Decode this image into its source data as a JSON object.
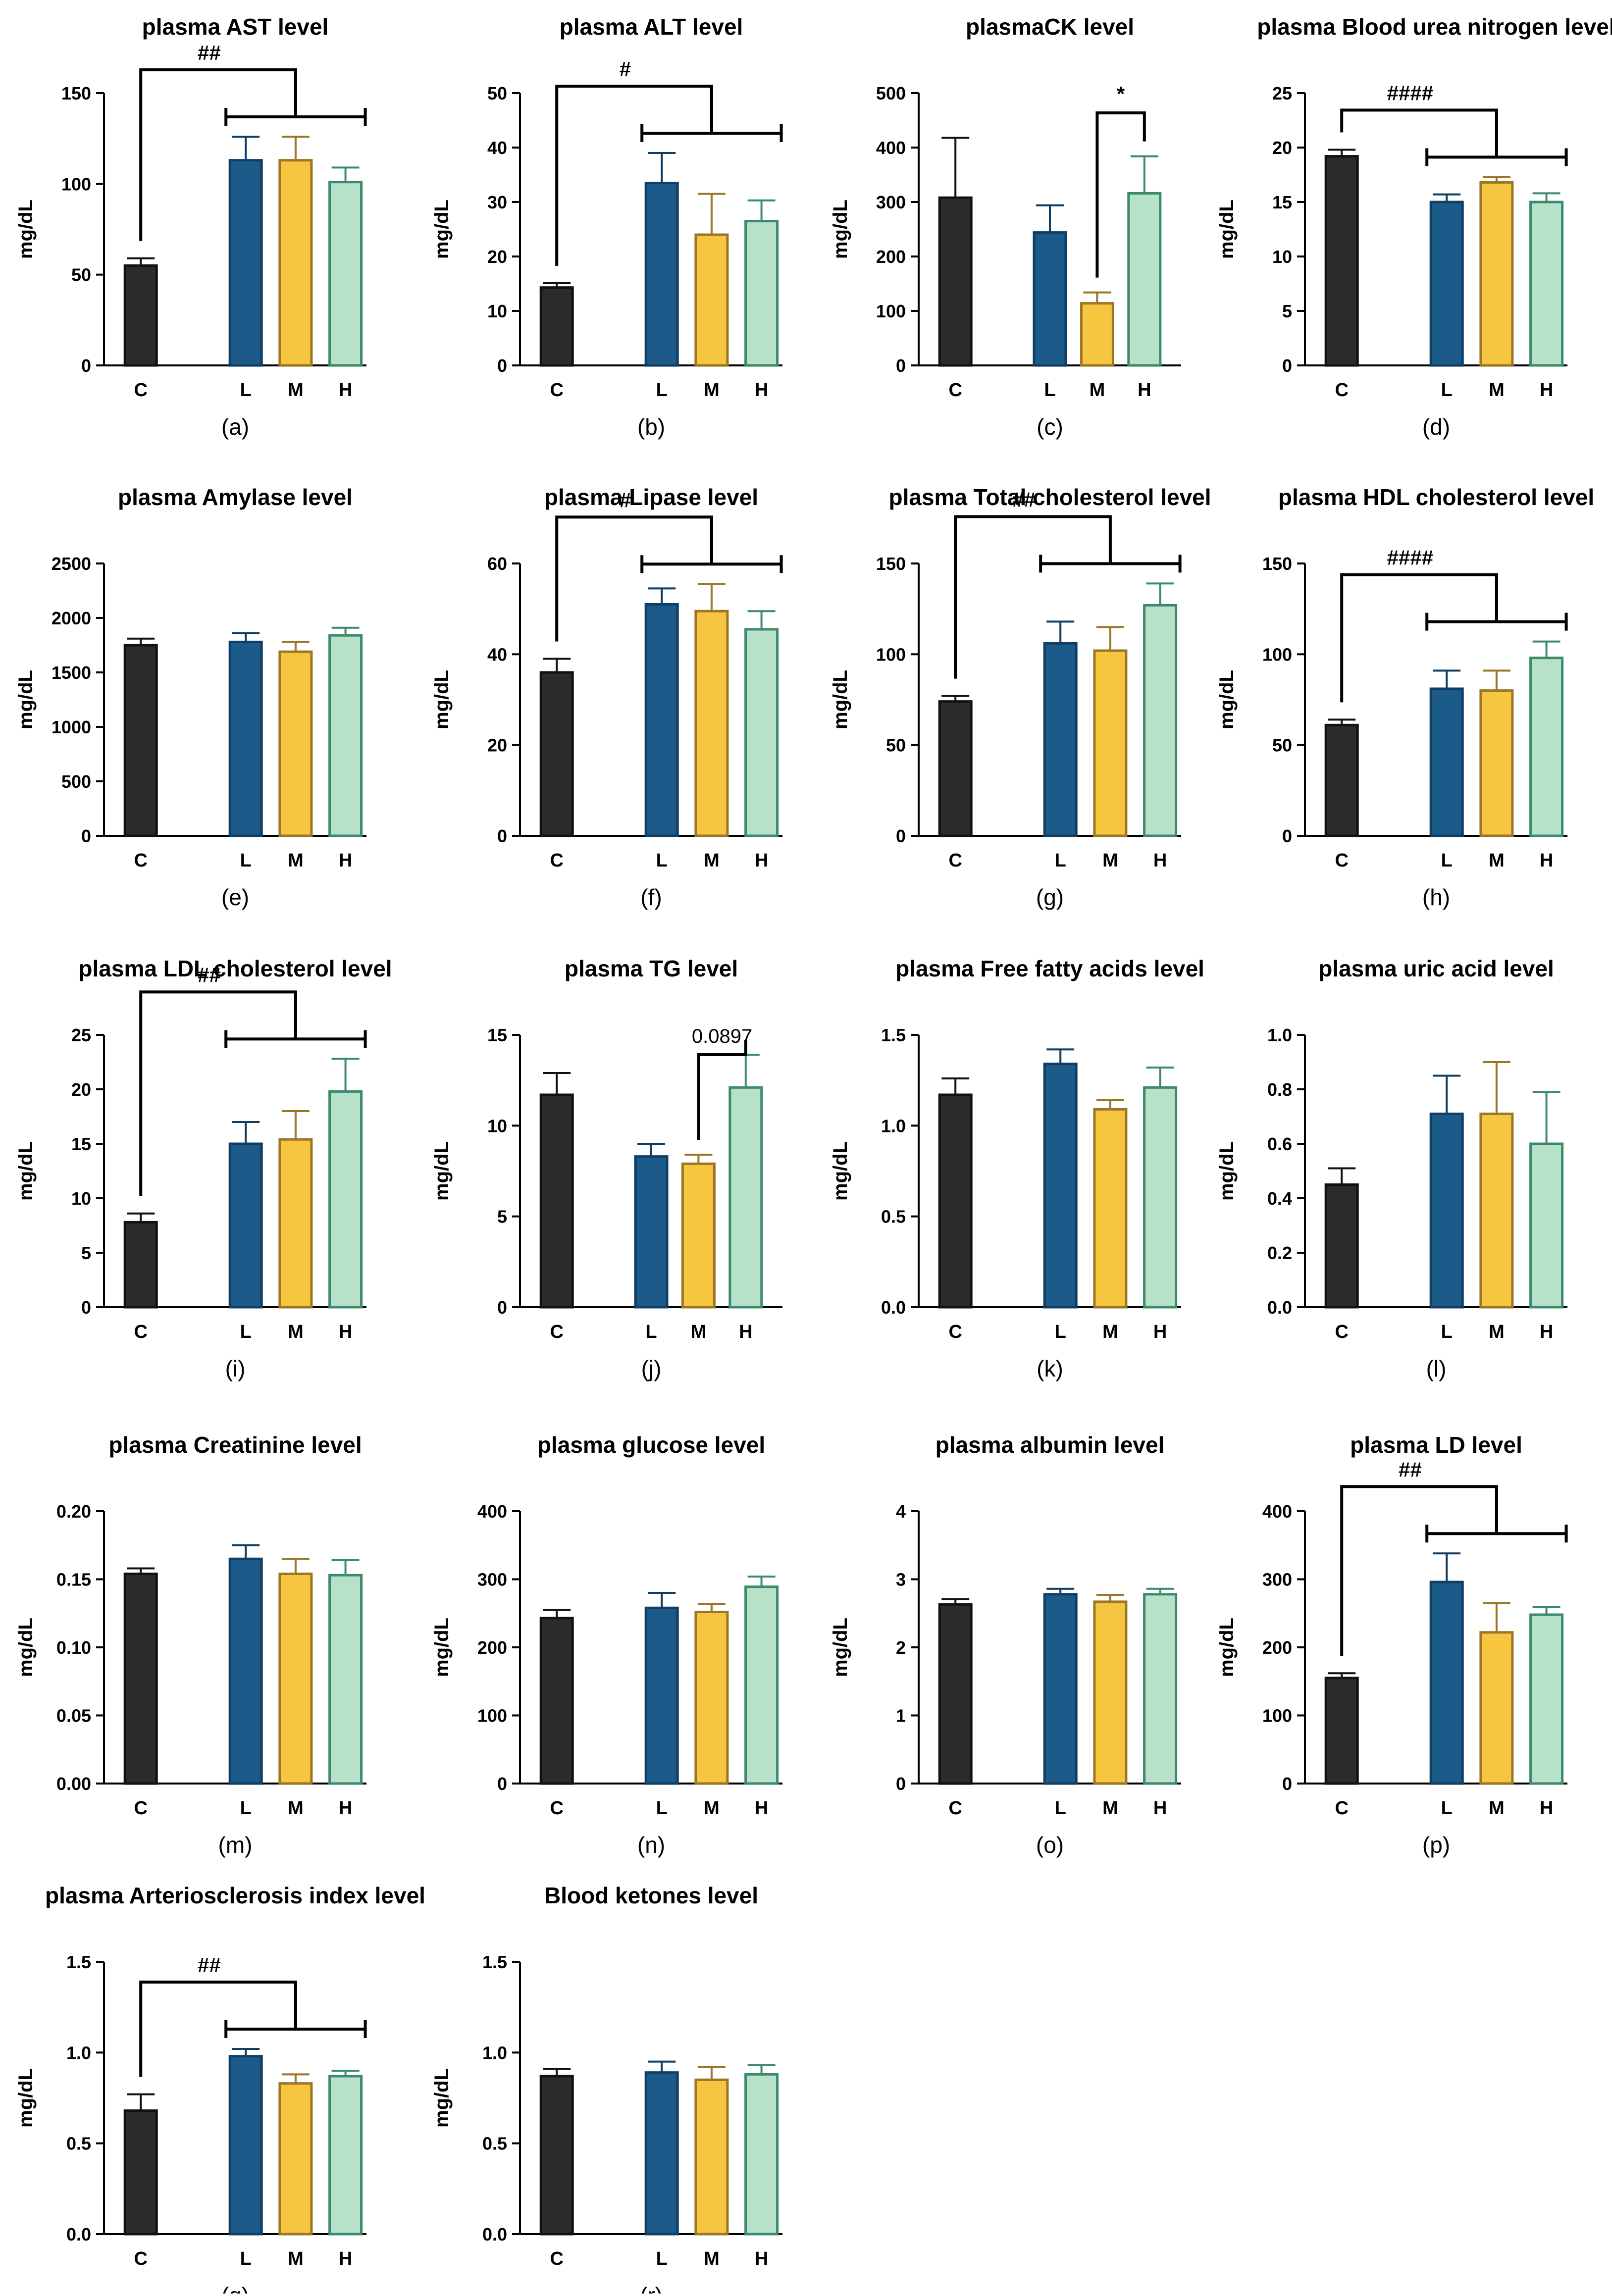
{
  "colors": {
    "C": "#2b2b2b",
    "L": "#1c5a8a",
    "M": "#f7c640",
    "H": "#b7e1c9",
    "edge_C": "#111111",
    "edge_L": "#0f3d63",
    "edge_M": "#9a7626",
    "edge_H": "#3c8a6e"
  },
  "chart_data": [
    {
      "type": "bar",
      "panel": "(a)",
      "title": "plasma AST level",
      "ylabel": "mg/dL",
      "categories": [
        "C",
        "L",
        "M",
        "H"
      ],
      "values": [
        55,
        113,
        113,
        101
      ],
      "errors": [
        4,
        13,
        13,
        8
      ],
      "ylim": [
        0,
        150
      ],
      "yticks": [
        "0",
        "50",
        "100",
        "150"
      ],
      "annotation": {
        "kind": "group",
        "label": "##"
      }
    },
    {
      "type": "bar",
      "panel": "(b)",
      "title": "plasma ALT level",
      "ylabel": "mg/dL",
      "categories": [
        "C",
        "L",
        "M",
        "H"
      ],
      "values": [
        14.3,
        33.5,
        24,
        26.5
      ],
      "errors": [
        0.8,
        5.5,
        7.5,
        3.8
      ],
      "ylim": [
        0,
        50
      ],
      "yticks": [
        "0",
        "10",
        "20",
        "30",
        "40",
        "50"
      ],
      "annotation": {
        "kind": "group",
        "label": "#"
      }
    },
    {
      "type": "bar",
      "panel": "(c)",
      "title": "plasmaCK level",
      "ylabel": "mg/dL",
      "categories": [
        "C",
        "L",
        "M",
        "H"
      ],
      "values": [
        308,
        244,
        114,
        316
      ],
      "errors": [
        110,
        50,
        20,
        68
      ],
      "ylim": [
        0,
        500
      ],
      "yticks": [
        "0",
        "100",
        "200",
        "300",
        "400",
        "500"
      ],
      "annotation": {
        "kind": "pair",
        "label": "*"
      }
    },
    {
      "type": "bar",
      "panel": "(d)",
      "title": "plasma Blood urea nitrogen level",
      "ylabel": "mg/dL",
      "categories": [
        "C",
        "L",
        "M",
        "H"
      ],
      "values": [
        19.2,
        15,
        16.8,
        15
      ],
      "errors": [
        0.6,
        0.7,
        0.5,
        0.8
      ],
      "ylim": [
        0,
        25
      ],
      "yticks": [
        "0",
        "5",
        "10",
        "15",
        "20",
        "25"
      ],
      "annotation": {
        "kind": "group",
        "label": "####"
      }
    },
    {
      "type": "bar",
      "panel": "(e)",
      "title": "plasma Amylase level",
      "ylabel": "mg/dL",
      "categories": [
        "C",
        "L",
        "M",
        "H"
      ],
      "values": [
        1750,
        1780,
        1690,
        1840
      ],
      "errors": [
        60,
        80,
        90,
        70
      ],
      "ylim": [
        0,
        2500
      ],
      "yticks": [
        "0",
        "500",
        "1000",
        "1500",
        "2000",
        "2500"
      ]
    },
    {
      "type": "bar",
      "panel": "(f)",
      "title": "plasma Lipase level",
      "ylabel": "mg/dL",
      "categories": [
        "C",
        "L",
        "M",
        "H"
      ],
      "values": [
        36,
        51,
        49.5,
        45.5
      ],
      "errors": [
        3,
        3.5,
        6,
        4
      ],
      "ylim": [
        0,
        60
      ],
      "yticks": [
        "0",
        "20",
        "40",
        "60"
      ],
      "annotation": {
        "kind": "group",
        "label": "#"
      }
    },
    {
      "type": "bar",
      "panel": "(g)",
      "title": "plasma Total cholesterol level",
      "ylabel": "mg/dL",
      "categories": [
        "C",
        "L",
        "M",
        "H"
      ],
      "values": [
        74,
        106,
        102,
        127
      ],
      "errors": [
        3,
        12,
        13,
        12
      ],
      "ylim": [
        0,
        150
      ],
      "yticks": [
        "0",
        "50",
        "100",
        "150"
      ],
      "annotation": {
        "kind": "group",
        "label": "##"
      }
    },
    {
      "type": "bar",
      "panel": "(h)",
      "title": "plasma HDL cholesterol level",
      "ylabel": "mg/dL",
      "categories": [
        "C",
        "L",
        "M",
        "H"
      ],
      "values": [
        61,
        81,
        80,
        98
      ],
      "errors": [
        3,
        10,
        11,
        9
      ],
      "ylim": [
        0,
        150
      ],
      "yticks": [
        "0",
        "50",
        "100",
        "150"
      ],
      "annotation": {
        "kind": "group",
        "label": "####"
      }
    },
    {
      "type": "bar",
      "panel": "(i)",
      "title": "plasma LDL cholesterol level",
      "ylabel": "mg/dL",
      "categories": [
        "C",
        "L",
        "M",
        "H"
      ],
      "values": [
        7.8,
        15,
        15.4,
        19.8
      ],
      "errors": [
        0.8,
        2,
        2.6,
        3
      ],
      "ylim": [
        0,
        25
      ],
      "yticks": [
        "0",
        "5",
        "10",
        "15",
        "20",
        "25"
      ],
      "annotation": {
        "kind": "group",
        "label": "##"
      }
    },
    {
      "type": "bar",
      "panel": "(j)",
      "title": "plasma TG level",
      "ylabel": "mg/dL",
      "categories": [
        "C",
        "L",
        "M",
        "H"
      ],
      "values": [
        11.7,
        8.3,
        7.9,
        12.1
      ],
      "errors": [
        1.2,
        0.7,
        0.5,
        1.8
      ],
      "ylim": [
        0,
        15
      ],
      "yticks": [
        "0",
        "5",
        "10",
        "15"
      ],
      "annotation": {
        "kind": "pair",
        "label": "0.0897"
      }
    },
    {
      "type": "bar",
      "panel": "(k)",
      "title": "plasma Free fatty acids level",
      "ylabel": "mg/dL",
      "categories": [
        "C",
        "L",
        "M",
        "H"
      ],
      "values": [
        1.17,
        1.34,
        1.09,
        1.21
      ],
      "errors": [
        0.09,
        0.08,
        0.05,
        0.11
      ],
      "ylim": [
        0,
        1.5
      ],
      "yticks": [
        "0.0",
        "0.5",
        "1.0",
        "1.5"
      ]
    },
    {
      "type": "bar",
      "panel": "(l)",
      "title": "plasma uric acid level",
      "ylabel": "mg/dL",
      "categories": [
        "C",
        "L",
        "M",
        "H"
      ],
      "values": [
        0.45,
        0.71,
        0.71,
        0.6
      ],
      "errors": [
        0.06,
        0.14,
        0.19,
        0.19
      ],
      "ylim": [
        0,
        1.0
      ],
      "yticks": [
        "0.0",
        "0.2",
        "0.4",
        "0.6",
        "0.8",
        "1.0"
      ]
    },
    {
      "type": "bar",
      "panel": "(m)",
      "title": "plasma Creatinine level",
      "ylabel": "mg/dL",
      "categories": [
        "C",
        "L",
        "M",
        "H"
      ],
      "values": [
        0.154,
        0.165,
        0.154,
        0.153
      ],
      "errors": [
        0.004,
        0.01,
        0.011,
        0.011
      ],
      "ylim": [
        0,
        0.2
      ],
      "yticks": [
        "0.00",
        "0.05",
        "0.10",
        "0.15",
        "0.20"
      ]
    },
    {
      "type": "bar",
      "panel": "(n)",
      "title": "plasma glucose level",
      "ylabel": "mg/dL",
      "categories": [
        "C",
        "L",
        "M",
        "H"
      ],
      "values": [
        243,
        258,
        252,
        289
      ],
      "errors": [
        12,
        22,
        12,
        15
      ],
      "ylim": [
        0,
        400
      ],
      "yticks": [
        "0",
        "100",
        "200",
        "300",
        "400"
      ]
    },
    {
      "type": "bar",
      "panel": "(o)",
      "title": "plasma albumin level",
      "ylabel": "mg/dL",
      "categories": [
        "C",
        "L",
        "M",
        "H"
      ],
      "values": [
        2.63,
        2.78,
        2.67,
        2.78
      ],
      "errors": [
        0.08,
        0.08,
        0.1,
        0.08
      ],
      "ylim": [
        0,
        4
      ],
      "yticks": [
        "0",
        "1",
        "2",
        "3",
        "4"
      ]
    },
    {
      "type": "bar",
      "panel": "(p)",
      "title": "plasma LD level",
      "ylabel": "mg/dL",
      "categories": [
        "C",
        "L",
        "M",
        "H"
      ],
      "values": [
        155,
        296,
        222,
        248
      ],
      "errors": [
        7,
        42,
        43,
        11
      ],
      "ylim": [
        0,
        400
      ],
      "yticks": [
        "0",
        "100",
        "200",
        "300",
        "400"
      ],
      "annotation": {
        "kind": "group",
        "label": "##"
      }
    },
    {
      "type": "bar",
      "panel": "(q)",
      "title": "plasma Arteriosclerosis index level",
      "ylabel": "mg/dL",
      "categories": [
        "C",
        "L",
        "M",
        "H"
      ],
      "values": [
        0.68,
        0.98,
        0.83,
        0.87
      ],
      "errors": [
        0.09,
        0.04,
        0.05,
        0.03
      ],
      "ylim": [
        0,
        1.5
      ],
      "yticks": [
        "0.0",
        "0.5",
        "1.0",
        "1.5"
      ],
      "annotation": {
        "kind": "group",
        "label": "##"
      }
    },
    {
      "type": "bar",
      "panel": "(r)",
      "title": "Blood ketones level",
      "ylabel": "mg/dL",
      "categories": [
        "C",
        "L",
        "M",
        "H"
      ],
      "values": [
        0.87,
        0.89,
        0.85,
        0.88
      ],
      "errors": [
        0.04,
        0.06,
        0.07,
        0.05
      ],
      "ylim": [
        0,
        1.5
      ],
      "yticks": [
        "0.0",
        "0.5",
        "1.0",
        "1.5"
      ]
    }
  ]
}
